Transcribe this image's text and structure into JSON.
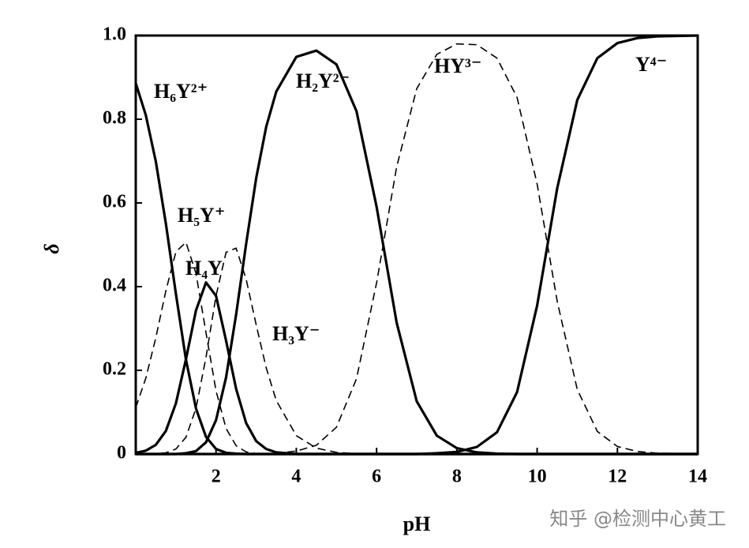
{
  "chart_data": {
    "type": "line",
    "xlabel": "pH",
    "ylabel": "δ",
    "xlim": [
      0,
      14
    ],
    "ylim": [
      0,
      1
    ],
    "xticks": [
      2,
      4,
      6,
      8,
      10,
      12,
      14
    ],
    "yticks": [
      0,
      0.2,
      0.4,
      0.6,
      0.8,
      {
        "value": 1,
        "label": "1.0"
      }
    ],
    "grid": false,
    "annotations": [
      "知乎 @检测中心黄工"
    ],
    "x": [
      0,
      0.25,
      0.5,
      0.75,
      1,
      1.25,
      1.5,
      1.75,
      2,
      2.25,
      2.5,
      2.75,
      3,
      3.25,
      3.5,
      4,
      4.5,
      5,
      5.5,
      6,
      6.5,
      7,
      7.5,
      8,
      8.5,
      9,
      9.5,
      10,
      10.5,
      11,
      11.5,
      12,
      12.5,
      13,
      13.5,
      14
    ],
    "series": [
      {
        "name": "H₆Y²⁺",
        "color": "#000000",
        "dashed": false,
        "values": [
          0.886,
          0.81,
          0.699,
          0.551,
          0.383,
          0.226,
          0.109,
          0.041,
          0.012,
          0.003,
          0.001,
          0,
          0,
          0,
          0,
          0,
          0,
          0,
          0,
          0,
          0,
          0,
          0,
          0,
          0,
          0,
          0,
          0,
          0,
          0,
          0,
          0,
          0,
          0,
          0,
          0
        ]
      },
      {
        "name": "H₅Y⁺",
        "color": "#000000",
        "dashed": true,
        "values": [
          0.111,
          0.181,
          0.278,
          0.39,
          0.483,
          0.506,
          0.432,
          0.29,
          0.151,
          0.061,
          0.02,
          0.005,
          0.001,
          0,
          0,
          0,
          0,
          0,
          0,
          0,
          0,
          0,
          0,
          0,
          0,
          0,
          0,
          0,
          0,
          0,
          0,
          0,
          0,
          0,
          0,
          0
        ]
      },
      {
        "name": "H₄Y",
        "color": "#000000",
        "dashed": false,
        "values": [
          0.003,
          0.008,
          0.022,
          0.055,
          0.121,
          0.226,
          0.343,
          0.41,
          0.378,
          0.271,
          0.156,
          0.074,
          0.031,
          0.012,
          0.004,
          0,
          0,
          0,
          0,
          0,
          0,
          0,
          0,
          0,
          0,
          0,
          0,
          0,
          0,
          0,
          0,
          0,
          0,
          0,
          0,
          0
        ]
      },
      {
        "name": "H₃Y⁻",
        "color": "#000000",
        "dashed": true,
        "values": [
          0,
          0,
          0.001,
          0.003,
          0.012,
          0.04,
          0.109,
          0.231,
          0.378,
          0.482,
          0.492,
          0.418,
          0.309,
          0.206,
          0.128,
          0.044,
          0.014,
          0.004,
          0.001,
          0,
          0,
          0,
          0,
          0,
          0,
          0,
          0,
          0,
          0,
          0,
          0,
          0,
          0,
          0,
          0,
          0
        ]
      },
      {
        "name": "H₂Y²⁻",
        "color": "#000000",
        "dashed": false,
        "values": [
          0,
          0,
          0,
          0,
          0,
          0.002,
          0.007,
          0.028,
          0.081,
          0.183,
          0.333,
          0.502,
          0.659,
          0.782,
          0.866,
          0.949,
          0.964,
          0.931,
          0.819,
          0.591,
          0.314,
          0.126,
          0.044,
          0.014,
          0.004,
          0.001,
          0,
          0,
          0,
          0,
          0,
          0,
          0,
          0,
          0,
          0
        ]
      },
      {
        "name": "HY³⁻",
        "color": "#000000",
        "dashed": true,
        "values": [
          0,
          0,
          0,
          0,
          0,
          0,
          0,
          0,
          0,
          0,
          0,
          0,
          0,
          0.001,
          0.002,
          0.007,
          0.021,
          0.064,
          0.18,
          0.409,
          0.686,
          0.873,
          0.955,
          0.98,
          0.978,
          0.946,
          0.852,
          0.645,
          0.365,
          0.154,
          0.054,
          0.018,
          0.006,
          0.002,
          0.001,
          0
        ]
      },
      {
        "name": "Y⁴⁻",
        "color": "#000000",
        "dashed": false,
        "values": [
          0,
          0,
          0,
          0,
          0,
          0,
          0,
          0,
          0,
          0,
          0,
          0,
          0,
          0,
          0,
          0,
          0,
          0,
          0,
          0,
          0,
          0,
          0.002,
          0.005,
          0.017,
          0.052,
          0.148,
          0.355,
          0.635,
          0.846,
          0.946,
          0.982,
          0.994,
          0.998,
          0.999,
          1
        ]
      }
    ]
  }
}
